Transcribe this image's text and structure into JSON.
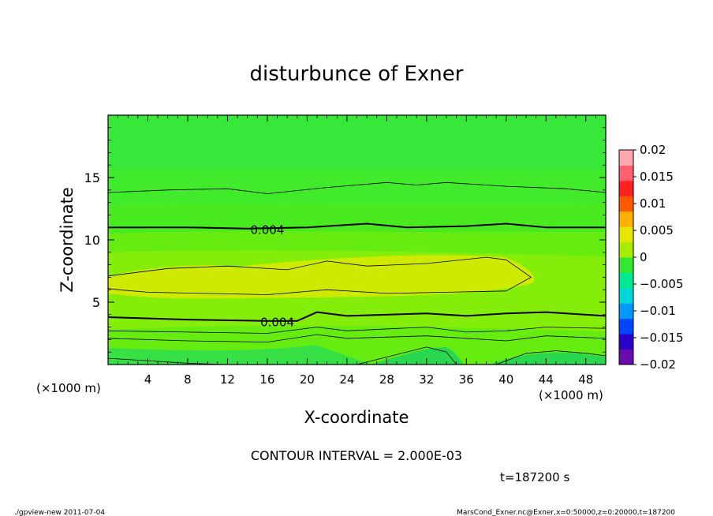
{
  "chart_data": {
    "type": "heatmap",
    "title": "disturbunce of Exner",
    "xlabel": "X-coordinate",
    "ylabel": "Z-coordinate",
    "x_unit": "(×1000 m)",
    "y_unit": "(×1000 m)",
    "xlim": [
      0,
      50
    ],
    "ylim": [
      0,
      20
    ],
    "x_ticks": [
      4,
      8,
      12,
      16,
      20,
      24,
      28,
      32,
      36,
      40,
      44,
      48
    ],
    "y_ticks": [
      5,
      10,
      15
    ],
    "colorbar": {
      "levels": [
        -0.02,
        -0.015,
        -0.01,
        -0.005,
        0,
        0.005,
        0.01,
        0.015,
        0.02
      ],
      "labels": [
        "0.02",
        "0.015",
        "0.01",
        "0.005",
        "0",
        "−0.005",
        "−0.01",
        "−0.015",
        "−0.02"
      ],
      "colors": [
        "#6a0cab",
        "#2a00c8",
        "#0044ff",
        "#0099ff",
        "#00d8d8",
        "#00e890",
        "#33e832",
        "#a8ec00",
        "#e6e600",
        "#ffb000",
        "#ff5a00",
        "#ff2020",
        "#ff6070",
        "#ffa8b0"
      ]
    },
    "contour_interval": "CONTOUR INTERVAL = 2.000E-03",
    "time_label": "t=187200 s",
    "contour_labels": [
      {
        "text": "0.004",
        "x": 16,
        "z": 10.8
      },
      {
        "text": "0.004",
        "x": 17,
        "z": 3.4
      }
    ],
    "contours": [
      {
        "level": 0.002,
        "points": [
          [
            0,
            13.8
          ],
          [
            6,
            14.0
          ],
          [
            12,
            14.1
          ],
          [
            16,
            13.7
          ],
          [
            22,
            14.2
          ],
          [
            28,
            14.6
          ],
          [
            31,
            14.4
          ],
          [
            34,
            14.6
          ],
          [
            40,
            14.3
          ],
          [
            46,
            14.1
          ],
          [
            50,
            13.8
          ]
        ]
      },
      {
        "level": 0.004,
        "points": [
          [
            0,
            11.0
          ],
          [
            8,
            11.0
          ],
          [
            14,
            10.9
          ],
          [
            20,
            11.0
          ],
          [
            26,
            11.3
          ],
          [
            30,
            11.0
          ],
          [
            36,
            11.1
          ],
          [
            40,
            11.3
          ],
          [
            44,
            11.0
          ],
          [
            50,
            11.0
          ]
        ]
      },
      {
        "level": 0.006,
        "points": [
          [
            0,
            7.1
          ],
          [
            6,
            7.7
          ],
          [
            12,
            7.9
          ],
          [
            18,
            7.6
          ],
          [
            22,
            8.3
          ],
          [
            26,
            7.9
          ],
          [
            32,
            8.1
          ],
          [
            38,
            8.6
          ],
          [
            40,
            8.4
          ],
          [
            42.5,
            7.0
          ],
          [
            40,
            5.9
          ],
          [
            34,
            5.8
          ],
          [
            28,
            5.7
          ],
          [
            22,
            6.0
          ],
          [
            16,
            5.6
          ],
          [
            10,
            5.7
          ],
          [
            4,
            5.8
          ],
          [
            1,
            6.0
          ],
          [
            0,
            6.1
          ]
        ]
      },
      {
        "level": 0.004,
        "points": [
          [
            0,
            3.8
          ],
          [
            8,
            3.6
          ],
          [
            16,
            3.5
          ],
          [
            19,
            3.5
          ],
          [
            21,
            4.2
          ],
          [
            24,
            3.9
          ],
          [
            32,
            4.1
          ],
          [
            36,
            3.9
          ],
          [
            40,
            4.1
          ],
          [
            44,
            4.2
          ],
          [
            50,
            3.9
          ]
        ]
      },
      {
        "level": 0.002,
        "points": [
          [
            0,
            2.7
          ],
          [
            8,
            2.6
          ],
          [
            16,
            2.5
          ],
          [
            21,
            3.0
          ],
          [
            24,
            2.7
          ],
          [
            32,
            3.0
          ],
          [
            36,
            2.6
          ],
          [
            40,
            2.7
          ],
          [
            44,
            3.0
          ],
          [
            50,
            2.9
          ]
        ]
      },
      {
        "level": 0.0,
        "points": [
          [
            0,
            2.1
          ],
          [
            8,
            1.9
          ],
          [
            16,
            1.8
          ],
          [
            21,
            2.4
          ],
          [
            24,
            2.1
          ],
          [
            32,
            2.3
          ],
          [
            36,
            2.1
          ],
          [
            40,
            1.9
          ],
          [
            44,
            2.3
          ],
          [
            50,
            2.1
          ]
        ]
      },
      {
        "level": -0.002,
        "points": [
          [
            0,
            0.5
          ],
          [
            8,
            0.1
          ],
          [
            12,
            0
          ]
        ]
      },
      {
        "level": -0.002,
        "points": [
          [
            25,
            0
          ],
          [
            29,
            0.8
          ],
          [
            32,
            1.4
          ],
          [
            34,
            1.0
          ],
          [
            35,
            0
          ]
        ]
      },
      {
        "level": -0.002,
        "points": [
          [
            39,
            0
          ],
          [
            42,
            0.9
          ],
          [
            45,
            1.1
          ],
          [
            48,
            0.9
          ],
          [
            50,
            0.7
          ]
        ]
      }
    ]
  },
  "footer": {
    "left": "./gpview-new   2011-07-04",
    "right": "MarsCond_Exner.nc@Exner,x=0:50000,z=0:20000,t=187200"
  }
}
